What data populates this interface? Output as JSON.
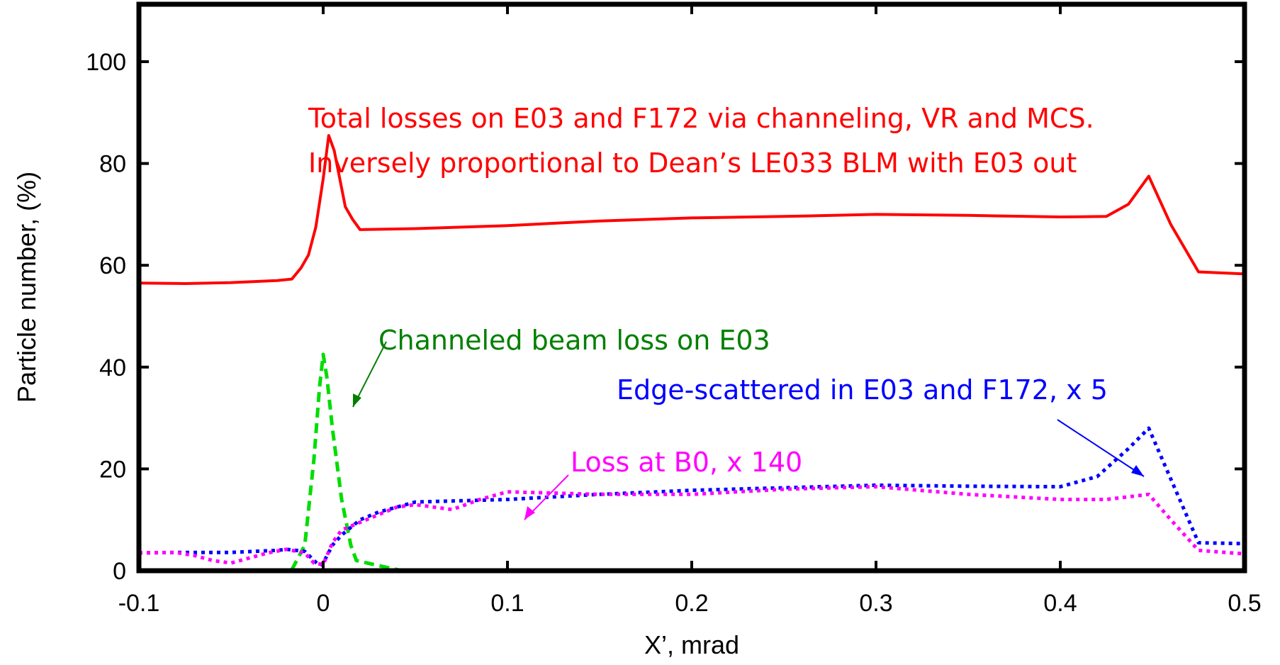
{
  "chart_data": {
    "type": "line",
    "title": "",
    "xlabel": "X’, mrad",
    "ylabel": "Particle number, (%)",
    "xlim": [
      -0.1,
      0.5
    ],
    "ylim": [
      0,
      100
    ],
    "xticks": [
      "-0.1",
      "0",
      "0.1",
      "0.2",
      "0.3",
      "0.4",
      "0.5"
    ],
    "yticks": [
      "0",
      "20",
      "40",
      "60",
      "80",
      "100"
    ],
    "grid": false,
    "legend": "none",
    "series": [
      {
        "key": "total",
        "color": "#ff0000",
        "style": "solid",
        "x": [
          -0.1,
          -0.075,
          -0.05,
          -0.025,
          -0.017,
          -0.012,
          -0.008,
          -0.004,
          0.0,
          0.003,
          0.006,
          0.009,
          0.012,
          0.016,
          0.02,
          0.05,
          0.1,
          0.15,
          0.2,
          0.25,
          0.3,
          0.35,
          0.4,
          0.425,
          0.437,
          0.448,
          0.46,
          0.475,
          0.5
        ],
        "y": [
          56.5,
          56.4,
          56.6,
          57.0,
          57.3,
          59.5,
          62.0,
          67.5,
          77.0,
          85.5,
          82.5,
          77.0,
          71.5,
          69.0,
          67.0,
          67.2,
          67.8,
          68.7,
          69.3,
          69.6,
          70.0,
          69.8,
          69.5,
          69.6,
          72.0,
          77.5,
          68.0,
          58.7,
          58.3
        ]
      },
      {
        "key": "channeled",
        "color": "#00dd00",
        "style": "dashed",
        "x": [
          -0.017,
          -0.01,
          -0.005,
          -0.002,
          0.0,
          0.002,
          0.005,
          0.01,
          0.015,
          0.018,
          0.03,
          0.043
        ],
        "y": [
          0.2,
          5.0,
          22.0,
          36.0,
          42.5,
          38.0,
          28.0,
          14.0,
          5.0,
          2.0,
          1.0,
          0.0
        ]
      },
      {
        "key": "edge",
        "color": "#0000ff",
        "style": "dotted",
        "x": [
          -0.1,
          -0.075,
          -0.05,
          -0.025,
          -0.02,
          -0.01,
          -0.005,
          -0.002,
          0.0,
          0.005,
          0.01,
          0.02,
          0.03,
          0.05,
          0.1,
          0.15,
          0.2,
          0.25,
          0.3,
          0.35,
          0.4,
          0.42,
          0.437,
          0.448,
          0.46,
          0.475,
          0.5
        ],
        "y": [
          3.5,
          3.6,
          3.6,
          4.0,
          4.2,
          3.8,
          2.0,
          1.0,
          1.5,
          5.0,
          7.0,
          10.0,
          11.5,
          13.5,
          14.0,
          15.0,
          15.8,
          16.3,
          16.8,
          16.6,
          16.5,
          18.5,
          24.0,
          28.0,
          18.0,
          5.5,
          5.3
        ]
      },
      {
        "key": "loss_b0",
        "color": "#ff00ff",
        "style": "dotted",
        "x": [
          -0.1,
          -0.08,
          -0.07,
          -0.06,
          -0.05,
          -0.04,
          -0.03,
          -0.02,
          -0.01,
          -0.005,
          0.0,
          0.005,
          0.01,
          0.02,
          0.03,
          0.04,
          0.05,
          0.07,
          0.085,
          0.1,
          0.15,
          0.2,
          0.25,
          0.3,
          0.35,
          0.4,
          0.425,
          0.448,
          0.46,
          0.475,
          0.5
        ],
        "y": [
          3.5,
          3.6,
          3.0,
          2.0,
          1.5,
          2.5,
          3.5,
          4.2,
          3.5,
          1.5,
          1.2,
          5.5,
          8.0,
          9.5,
          11.0,
          12.5,
          13.0,
          12.0,
          14.0,
          15.5,
          15.0,
          15.0,
          16.0,
          16.5,
          15.0,
          14.0,
          14.0,
          15.0,
          10.0,
          4.0,
          3.3
        ]
      }
    ],
    "annotations": [
      {
        "key": "total_line1",
        "text": "Total losses on E03 and F172 via channeling, VR and MCS.",
        "color": "#ff0000"
      },
      {
        "key": "total_line2",
        "text": "Inversely proportional to Dean’s LE033 BLM with E03 out",
        "color": "#ff0000"
      },
      {
        "key": "channeled",
        "text": "Channeled beam loss on E03",
        "color": "#008000"
      },
      {
        "key": "edge",
        "text": "Edge-scattered in E03 and F172, x 5",
        "color": "#0000ff"
      },
      {
        "key": "loss_b0",
        "text": "Loss at B0, x 140",
        "color": "#ff00ff"
      }
    ]
  }
}
